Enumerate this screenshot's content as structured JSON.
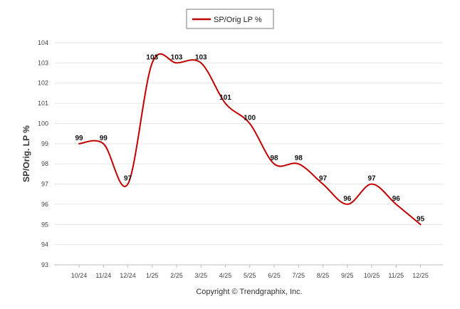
{
  "chart_data": {
    "type": "line",
    "title": "",
    "xlabel": "",
    "ylabel": "SP/Orig. LP %",
    "ylim": [
      93,
      104
    ],
    "y_ticks": [
      93,
      94,
      95,
      96,
      97,
      98,
      99,
      100,
      101,
      102,
      103,
      104
    ],
    "categories": [
      "10/24",
      "11/24",
      "12/24",
      "1/25",
      "2/25",
      "3/25",
      "4/25",
      "5/25",
      "6/25",
      "7/25",
      "8/25",
      "9/25",
      "10/25",
      "11/25",
      "12/25"
    ],
    "x_tick_labels": [
      "10/24",
      "11/24",
      "12/24",
      "1/25",
      "2/25",
      "3/25",
      "4/25",
      "5/25",
      "6/25",
      "7/25",
      "8/25",
      "9/25",
      "10/25",
      "11/25",
      "12/25"
    ],
    "series": [
      {
        "name": "SP/Orig LP %",
        "color": "#c00000",
        "values": [
          99,
          99,
          97,
          103,
          103,
          103,
          101,
          100,
          98,
          98,
          97,
          96,
          97,
          96,
          95
        ],
        "point_labels": [
          "99",
          "99",
          "97",
          "103",
          "103",
          "103",
          "101",
          "100",
          "98",
          "98",
          "97",
          "96",
          "97",
          "96",
          "95"
        ]
      }
    ],
    "legend": {
      "position": "top-center",
      "entries": [
        "SP/Orig LP %"
      ]
    },
    "grid": true,
    "credit": "Copyright © Trendgraphix, Inc."
  }
}
